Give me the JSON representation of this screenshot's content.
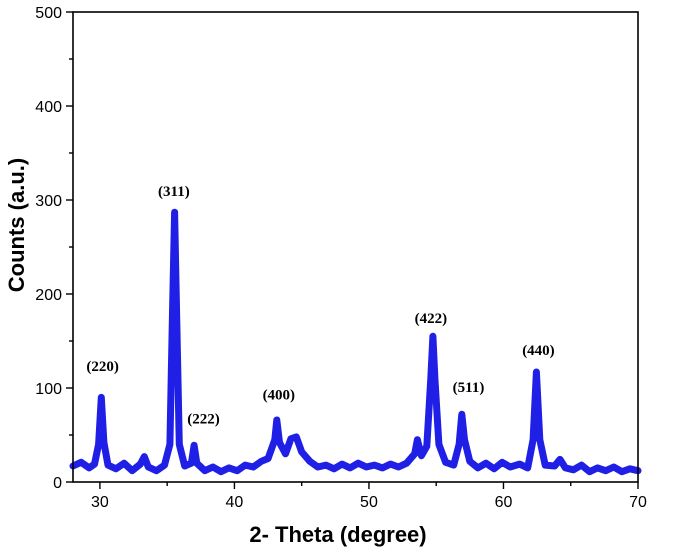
{
  "chart_data": {
    "type": "line",
    "title": "",
    "xlabel": "2- Theta (degree)",
    "ylabel": "Counts (a.u.)",
    "xlim": [
      28,
      70
    ],
    "ylim": [
      0,
      500
    ],
    "x_ticks": [
      30,
      40,
      50,
      60,
      70
    ],
    "y_ticks": [
      0,
      100,
      200,
      300,
      400,
      500
    ],
    "grid": false,
    "legend": "none",
    "series": [
      {
        "color": "#1f1fe6",
        "points": [
          [
            28.0,
            17
          ],
          [
            28.6,
            21
          ],
          [
            29.2,
            15
          ],
          [
            29.6,
            19
          ],
          [
            29.9,
            40
          ],
          [
            30.1,
            90
          ],
          [
            30.3,
            42
          ],
          [
            30.6,
            18
          ],
          [
            31.2,
            14
          ],
          [
            31.8,
            20
          ],
          [
            32.4,
            12
          ],
          [
            33.0,
            19
          ],
          [
            33.3,
            27
          ],
          [
            33.6,
            16
          ],
          [
            34.2,
            12
          ],
          [
            34.8,
            18
          ],
          [
            35.2,
            40
          ],
          [
            35.4,
            180
          ],
          [
            35.55,
            287
          ],
          [
            35.7,
            180
          ],
          [
            35.9,
            40
          ],
          [
            36.3,
            17
          ],
          [
            36.8,
            20
          ],
          [
            37.0,
            39
          ],
          [
            37.2,
            20
          ],
          [
            37.8,
            12
          ],
          [
            38.4,
            16
          ],
          [
            39.0,
            11
          ],
          [
            39.6,
            15
          ],
          [
            40.2,
            12
          ],
          [
            40.8,
            18
          ],
          [
            41.4,
            16
          ],
          [
            42.0,
            22
          ],
          [
            42.5,
            25
          ],
          [
            43.0,
            45
          ],
          [
            43.15,
            66
          ],
          [
            43.35,
            42
          ],
          [
            43.8,
            30
          ],
          [
            44.2,
            46
          ],
          [
            44.6,
            48
          ],
          [
            45.0,
            32
          ],
          [
            45.6,
            22
          ],
          [
            46.2,
            16
          ],
          [
            46.8,
            18
          ],
          [
            47.4,
            14
          ],
          [
            48.0,
            19
          ],
          [
            48.6,
            15
          ],
          [
            49.2,
            20
          ],
          [
            49.8,
            16
          ],
          [
            50.4,
            18
          ],
          [
            51.0,
            15
          ],
          [
            51.6,
            19
          ],
          [
            52.2,
            16
          ],
          [
            52.8,
            20
          ],
          [
            53.4,
            30
          ],
          [
            53.6,
            45
          ],
          [
            53.9,
            28
          ],
          [
            54.3,
            38
          ],
          [
            54.6,
            110
          ],
          [
            54.75,
            155
          ],
          [
            54.9,
            110
          ],
          [
            55.2,
            40
          ],
          [
            55.7,
            21
          ],
          [
            56.3,
            18
          ],
          [
            56.7,
            40
          ],
          [
            56.9,
            72
          ],
          [
            57.1,
            45
          ],
          [
            57.5,
            22
          ],
          [
            58.1,
            15
          ],
          [
            58.7,
            20
          ],
          [
            59.3,
            14
          ],
          [
            59.9,
            21
          ],
          [
            60.5,
            16
          ],
          [
            61.2,
            19
          ],
          [
            61.8,
            15
          ],
          [
            62.2,
            45
          ],
          [
            62.45,
            117
          ],
          [
            62.7,
            45
          ],
          [
            63.1,
            18
          ],
          [
            63.8,
            17
          ],
          [
            64.2,
            24
          ],
          [
            64.6,
            15
          ],
          [
            65.2,
            13
          ],
          [
            65.8,
            18
          ],
          [
            66.4,
            11
          ],
          [
            67.0,
            15
          ],
          [
            67.6,
            12
          ],
          [
            68.2,
            16
          ],
          [
            68.8,
            11
          ],
          [
            69.4,
            14
          ],
          [
            70.0,
            12
          ]
        ]
      }
    ],
    "annotations": [
      {
        "text": "(220)",
        "x": 30.2,
        "y": 118
      },
      {
        "text": "(311)",
        "x": 35.5,
        "y": 304
      },
      {
        "text": "(222)",
        "x": 37.7,
        "y": 62
      },
      {
        "text": "(400)",
        "x": 43.3,
        "y": 88
      },
      {
        "text": "(422)",
        "x": 54.6,
        "y": 169
      },
      {
        "text": "(511)",
        "x": 57.4,
        "y": 96
      },
      {
        "text": "(440)",
        "x": 62.6,
        "y": 135
      }
    ]
  }
}
